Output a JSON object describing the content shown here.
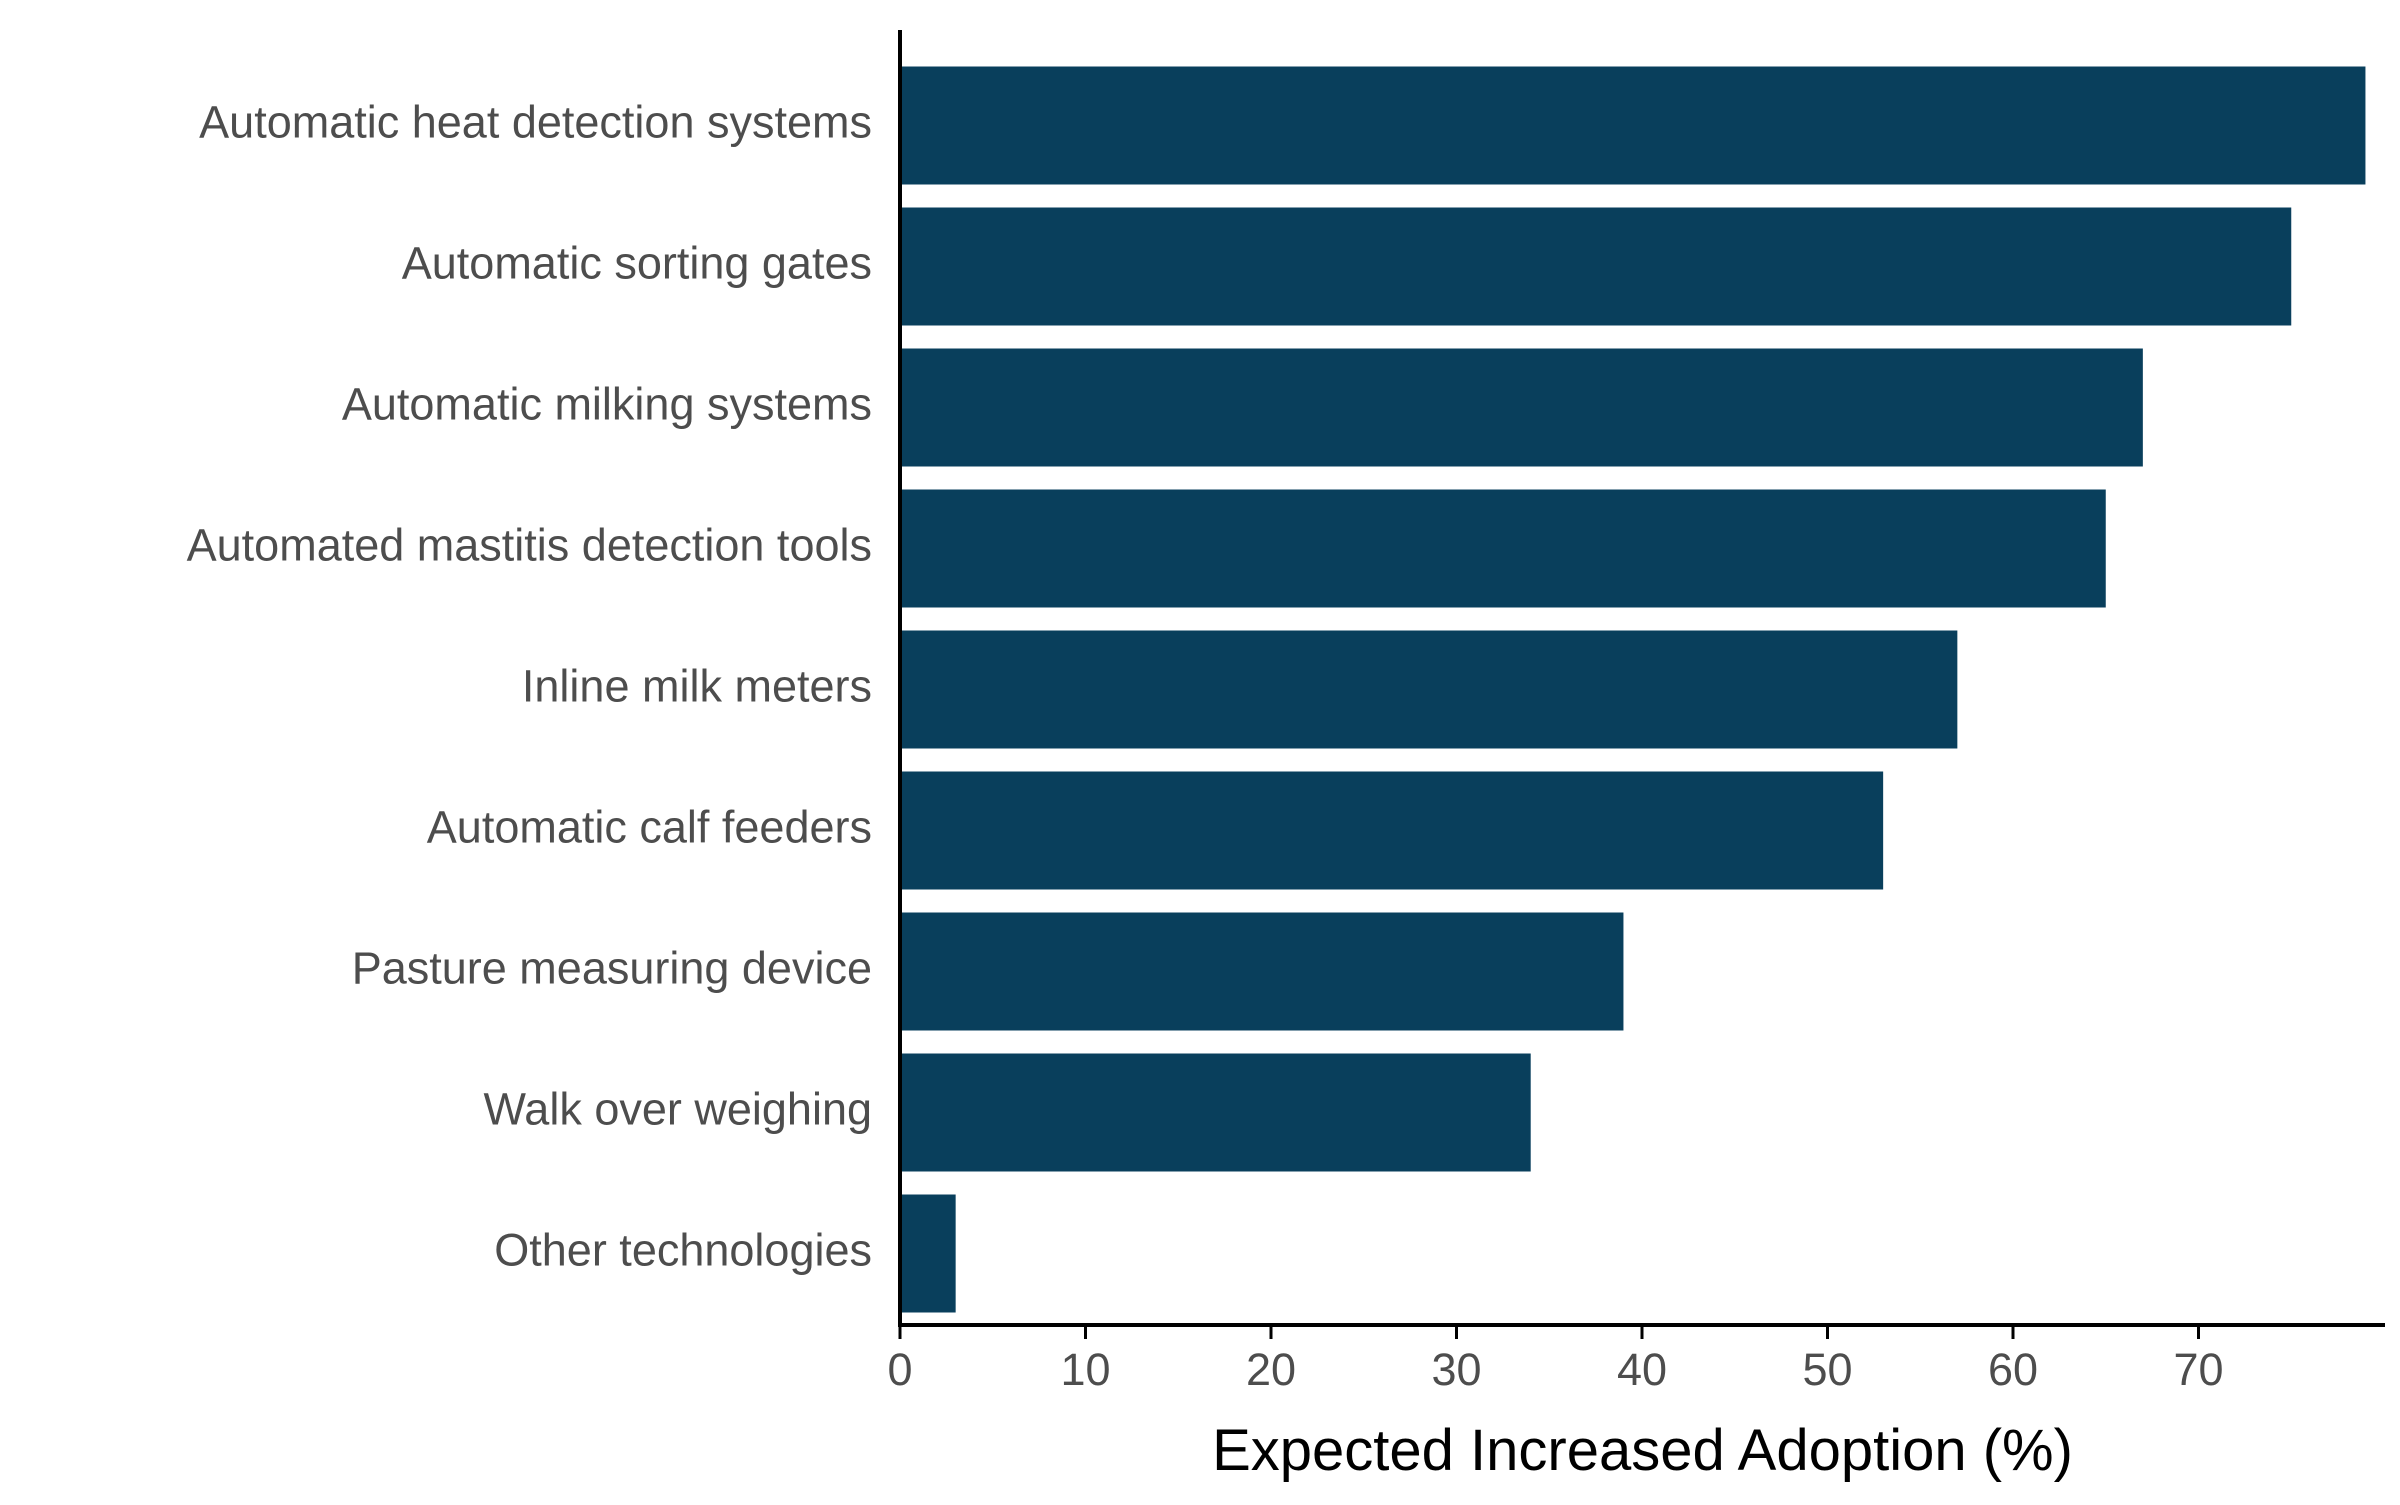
{
  "chart_data": {
    "type": "bar",
    "orientation": "horizontal",
    "title": "",
    "xlabel": "Expected Increased Adoption (%)",
    "ylabel": "",
    "categories": [
      "Automatic heat detection systems",
      "Automatic sorting gates",
      "Automatic milking systems",
      "Automated mastitis detection tools",
      "Inline milk meters",
      "Automatic calf feeders",
      "Pasture measuring device",
      "Walk over weighing",
      "Other technologies"
    ],
    "values": [
      79,
      75,
      67,
      65,
      57,
      53,
      39,
      34,
      3
    ],
    "xlim": [
      0,
      80
    ],
    "xticks": [
      0,
      10,
      20,
      30,
      40,
      50,
      60,
      70
    ],
    "tick_labels": [
      "0",
      "10",
      "20",
      "30",
      "40",
      "50",
      "60",
      "70"
    ],
    "grid": false,
    "legend": "none",
    "bar_color": "#093f5c",
    "axis_color": "#000000",
    "label_color": "#4d4d4d"
  }
}
